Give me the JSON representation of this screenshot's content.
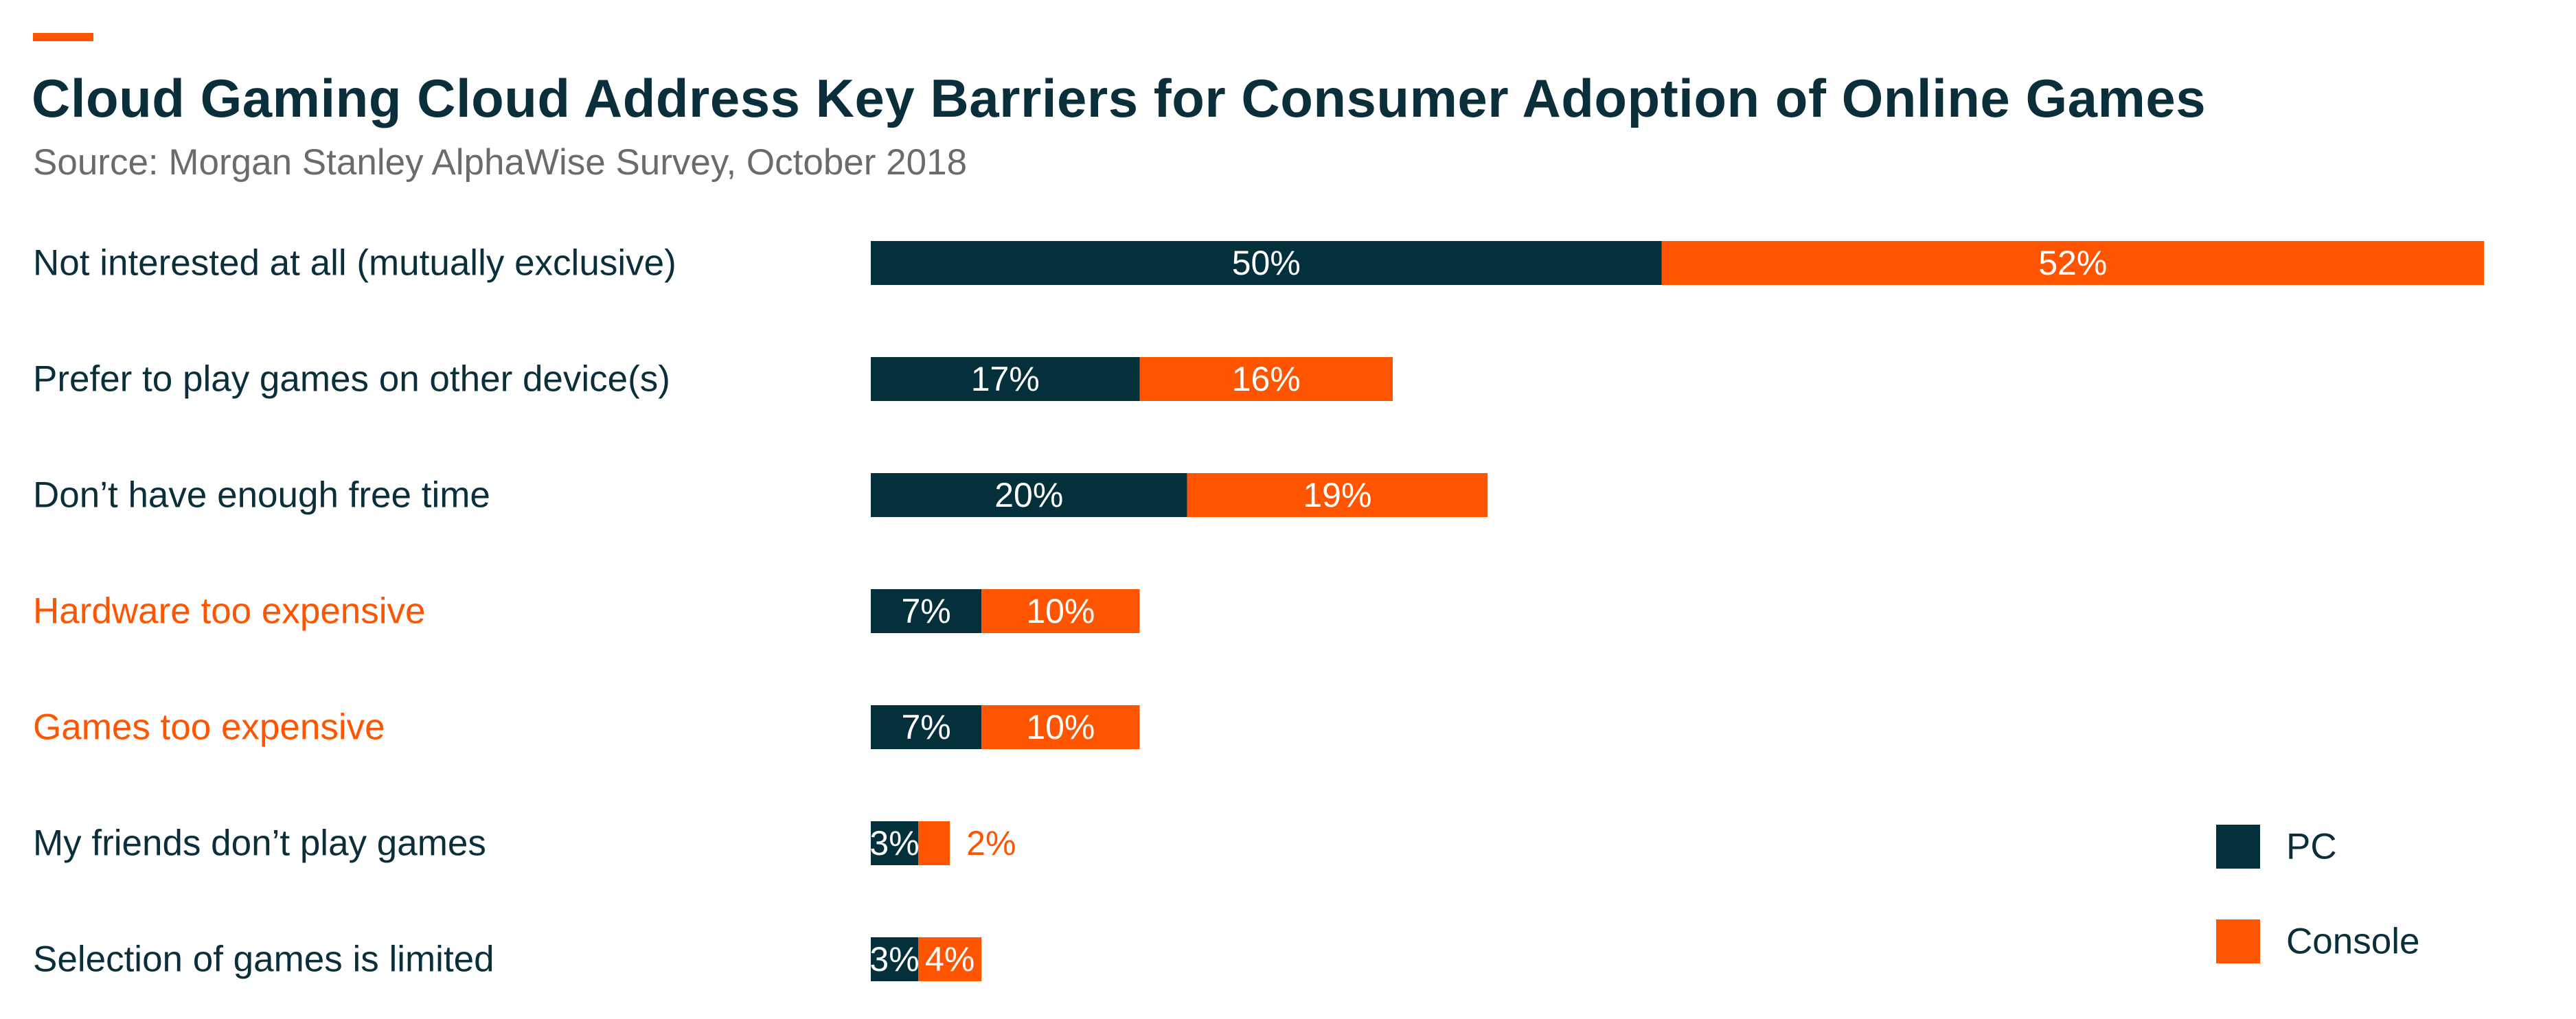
{
  "chart_data": {
    "type": "bar",
    "stacked": true,
    "orientation": "horizontal",
    "title": "Cloud Gaming Cloud Address Key Barriers for Consumer Adoption of Online Games",
    "subtitle": "Source: Morgan Stanley AlphaWise Survey, October 2018",
    "categories": [
      "Not interested at all (mutually exclusive)",
      "Prefer to play games on other device(s)",
      "Don’t have enough free time",
      "Hardware too expensive",
      "Games too expensive",
      "My friends don’t play games",
      "Selection of games is limited"
    ],
    "highlighted_categories": [
      "Hardware too expensive",
      "Games too expensive"
    ],
    "series": [
      {
        "name": "PC",
        "color": "#04303b",
        "values": [
          50,
          17,
          20,
          7,
          7,
          3,
          3
        ],
        "labels": [
          "50%",
          "17%",
          "20%",
          "7%",
          "7%",
          "3%",
          "3%"
        ]
      },
      {
        "name": "Console",
        "color": "#ff5500",
        "values": [
          52,
          16,
          19,
          10,
          10,
          2,
          4
        ],
        "labels": [
          "52%",
          "16%",
          "19%",
          "10%",
          "10%",
          "2%",
          "4%"
        ]
      }
    ],
    "xlim": [
      0,
      102
    ],
    "grid": false,
    "legend": "bottom-right"
  },
  "colors": {
    "accent": "#ff5500",
    "title": "#0b2f3a",
    "label": "#0b2f3a",
    "subtitle": "#6b6b6b"
  }
}
